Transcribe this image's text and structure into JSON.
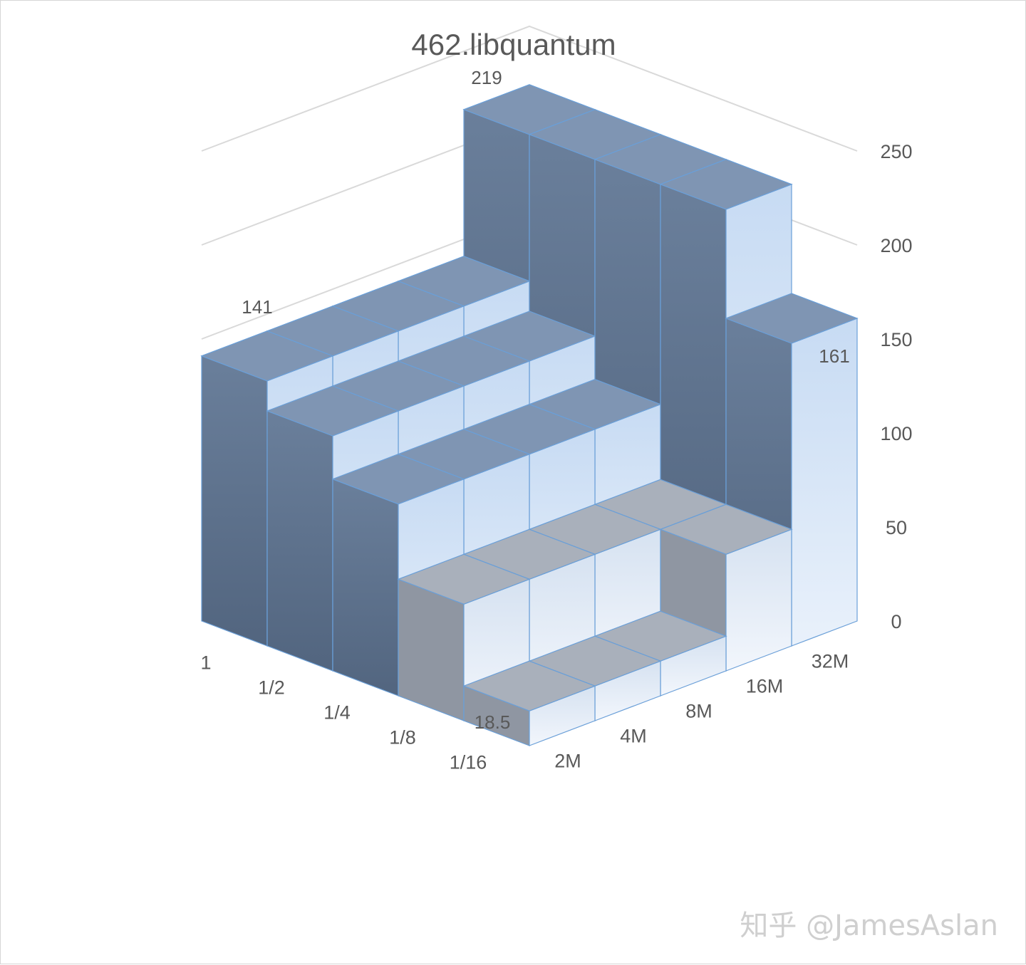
{
  "watermark": "知乎 @JamesAslan",
  "chart_data": {
    "type": "bar3d",
    "title": "462.libquantum",
    "x_categories": [
      "2M",
      "4M",
      "8M",
      "16M",
      "32M"
    ],
    "depth_categories": [
      "1",
      "1/2",
      "1/4",
      "1/8",
      "1/16"
    ],
    "zlim": [
      0,
      250
    ],
    "z_ticks": [
      0,
      50,
      100,
      150,
      200,
      250
    ],
    "grid": true,
    "values": [
      [
        141,
        141,
        141,
        141,
        219
      ],
      [
        125,
        125,
        125,
        125,
        219
      ],
      [
        102,
        102,
        102,
        102,
        219
      ],
      [
        62,
        62,
        62,
        62,
        219
      ],
      [
        18.5,
        18.5,
        18.5,
        62,
        161
      ]
    ],
    "data_labels": [
      {
        "text": "141",
        "value": 141
      },
      {
        "text": "219",
        "value": 219
      },
      {
        "text": "161",
        "value": 161
      },
      {
        "text": "18.5",
        "value": 18.5
      }
    ],
    "colors": {
      "dark_side": "#5a6f8c",
      "front_face": "#b9d0ec",
      "top_face": "#7f95b3",
      "edge": "#6a9fd8",
      "grid": "#d9d9d9"
    }
  }
}
